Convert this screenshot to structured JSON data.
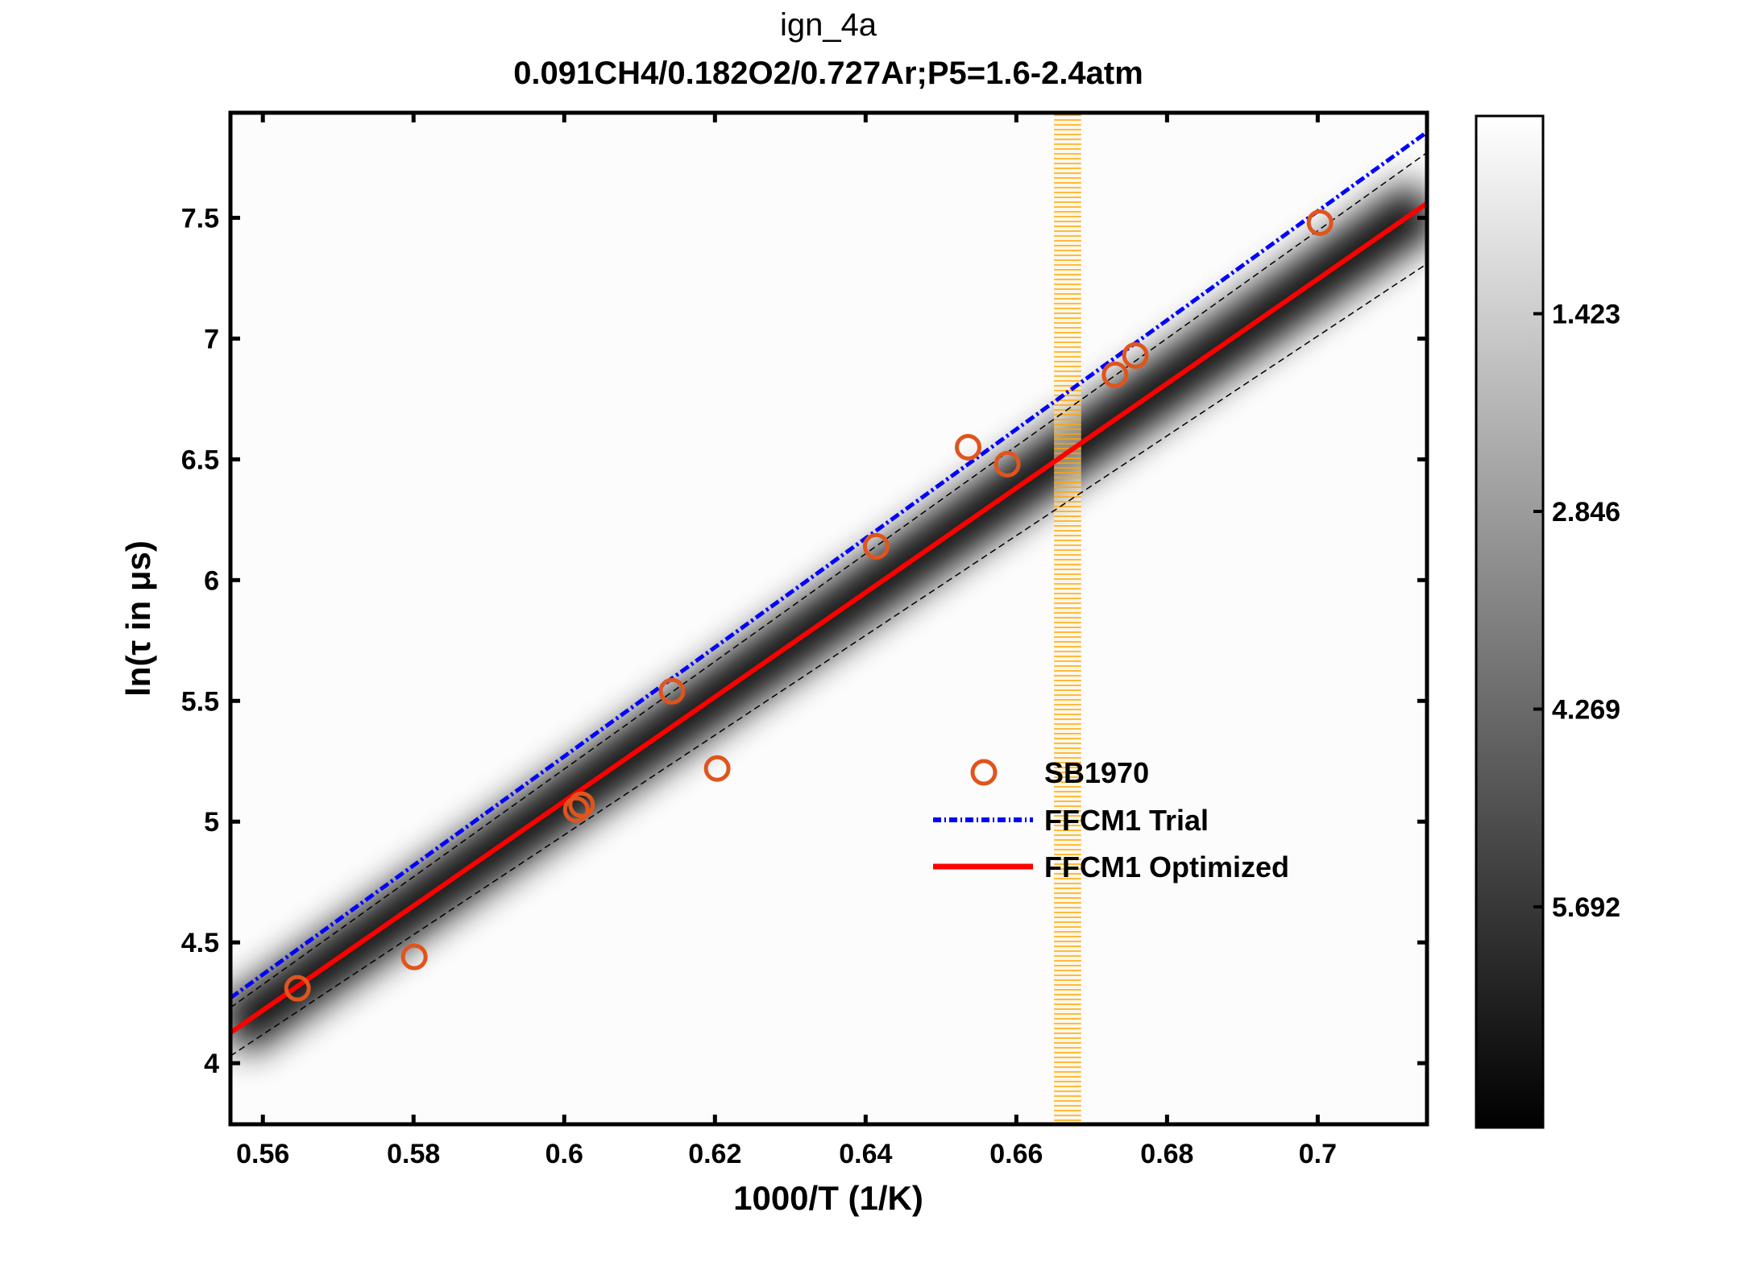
{
  "chart_data": {
    "type": "scatter",
    "title": "ign_4a",
    "subtitle": "0.091CH4/0.182O2/0.727Ar;P5=1.6-2.4atm",
    "xlabel": "1000/T (1/K)",
    "ylabel": "ln(τ in μs)",
    "xlim": [
      0.5557,
      0.7145
    ],
    "ylim": [
      3.747,
      7.935
    ],
    "xticks": [
      "0.56",
      "0.58",
      "0.6",
      "0.62",
      "0.64",
      "0.66",
      "0.68",
      "0.7"
    ],
    "yticks": [
      "4",
      "4.5",
      "5",
      "5.5",
      "6",
      "6.5",
      "7",
      "7.5"
    ],
    "grid": false,
    "legend_placement": "center-right",
    "series": [
      {
        "name": "SB1970",
        "kind": "markers",
        "color": "#e0541e",
        "x": [
          0.5646,
          0.5801,
          0.6016,
          0.6023,
          0.6143,
          0.6203,
          0.6414,
          0.6536,
          0.6588,
          0.6731,
          0.6758,
          0.7003
        ],
        "y": [
          4.31,
          4.44,
          5.05,
          5.07,
          5.54,
          5.22,
          6.14,
          6.55,
          6.48,
          6.85,
          6.93,
          7.48
        ]
      },
      {
        "name": "FFCM1 Trial",
        "kind": "dash-dot line",
        "color": "#0000ff",
        "x": [
          0.5557,
          0.7145
        ],
        "y": [
          4.27,
          7.855
        ]
      },
      {
        "name": "FFCM1 Optimized",
        "kind": "solid line",
        "color": "#ff0000",
        "x": [
          0.5557,
          0.7145
        ],
        "y": [
          4.126,
          7.56
        ]
      }
    ],
    "uncertainty_bounds": {
      "color": "#000000",
      "upper": {
        "x": [
          0.5557,
          0.7145
        ],
        "y": [
          4.23,
          7.77
        ]
      },
      "lower": {
        "x": [
          0.5557,
          0.7145
        ],
        "y": [
          4.03,
          7.31
        ]
      }
    },
    "vertical_band": {
      "color": "#ffa500",
      "x": [
        0.665,
        0.6686
      ]
    },
    "colorbar": {
      "colormap": "gray (white at top, black at bottom)",
      "range": [
        0,
        7.28
      ],
      "ticks": [
        "1.423",
        "2.846",
        "4.269",
        "5.692"
      ]
    }
  }
}
